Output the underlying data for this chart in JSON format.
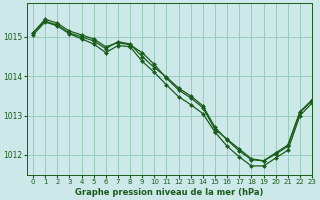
{
  "title": "Graphe pression niveau de la mer (hPa)",
  "background_color": "#cce8e8",
  "grid_color": "#99ccbb",
  "line_color": "#1a5c1a",
  "marker_color": "#1a5c1a",
  "xlim": [
    -0.5,
    23
  ],
  "ylim": [
    1011.5,
    1015.85
  ],
  "yticks": [
    1012,
    1013,
    1014,
    1015
  ],
  "xticks": [
    0,
    1,
    2,
    3,
    4,
    5,
    6,
    7,
    8,
    9,
    10,
    11,
    12,
    13,
    14,
    15,
    16,
    17,
    18,
    19,
    20,
    21,
    22,
    23
  ],
  "series": [
    {
      "x": [
        0,
        1,
        2,
        3,
        4,
        5,
        6,
        7,
        8,
        9,
        10,
        11,
        12,
        13,
        14,
        15,
        16,
        17,
        18,
        19,
        20,
        21,
        22,
        23
      ],
      "y": [
        1015.1,
        1015.45,
        1015.35,
        1015.15,
        1015.05,
        1014.95,
        1014.75,
        1014.85,
        1014.8,
        1014.6,
        1014.3,
        1013.95,
        1013.65,
        1013.45,
        1013.2,
        1012.65,
        1012.4,
        1012.15,
        1011.9,
        1011.85,
        1012.05,
        1012.25,
        1013.1,
        1013.4
      ]
    },
    {
      "x": [
        0,
        1,
        2,
        3,
        4,
        5,
        6,
        7,
        8,
        9,
        10,
        11,
        12,
        13,
        14,
        15,
        16,
        17,
        18,
        19,
        20,
        21,
        22,
        23
      ],
      "y": [
        1015.1,
        1015.4,
        1015.3,
        1015.1,
        1015.0,
        1014.9,
        1014.7,
        1014.88,
        1014.82,
        1014.5,
        1014.22,
        1013.98,
        1013.7,
        1013.5,
        1013.25,
        1012.7,
        1012.38,
        1012.1,
        1011.88,
        1011.85,
        1012.02,
        1012.22,
        1013.08,
        1013.38
      ]
    },
    {
      "x": [
        0,
        1,
        2,
        3,
        4,
        5,
        6,
        7,
        8,
        9,
        10,
        11,
        12,
        13,
        14,
        15
      ],
      "y": [
        1015.05,
        1015.38,
        1015.28,
        1015.08,
        1014.95,
        1014.82,
        1014.6,
        1014.78,
        1014.75,
        1014.38,
        1014.1,
        1013.78,
        1013.48,
        1013.28,
        1013.05,
        1012.58
      ]
    }
  ],
  "series2": [
    {
      "x": [
        15,
        16,
        17,
        18,
        19,
        20,
        21,
        22,
        23
      ],
      "y": [
        1012.58,
        1012.22,
        1011.95,
        1011.72,
        1011.72,
        1011.92,
        1012.12,
        1013.0,
        1013.32
      ]
    }
  ]
}
